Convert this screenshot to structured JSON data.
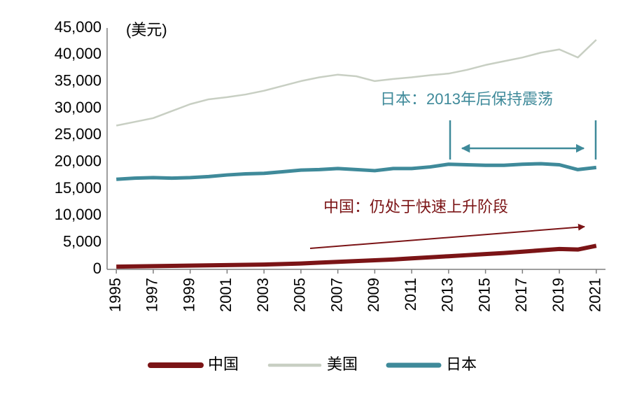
{
  "chart_data": {
    "type": "line",
    "y_label": "(美元)",
    "x": [
      1995,
      1996,
      1997,
      1998,
      1999,
      2000,
      2001,
      2002,
      2003,
      2004,
      2005,
      2006,
      2007,
      2008,
      2009,
      2010,
      2011,
      2012,
      2013,
      2014,
      2015,
      2016,
      2017,
      2018,
      2019,
      2020,
      2021
    ],
    "xlim": [
      1994.5,
      2021.5
    ],
    "xticks": [
      1995,
      1997,
      1999,
      2001,
      2003,
      2005,
      2007,
      2009,
      2011,
      2013,
      2015,
      2017,
      2019,
      2021
    ],
    "ylim": [
      0,
      45000
    ],
    "yticks": [
      0,
      {
        "value": 5000,
        "label": "5,000"
      },
      {
        "value": 10000,
        "label": "10,000"
      },
      {
        "value": 15000,
        "label": "15,000"
      },
      {
        "value": 20000,
        "label": "20,000"
      },
      {
        "value": 25000,
        "label": "25,000"
      },
      {
        "value": 30000,
        "label": "30,000"
      },
      {
        "value": 35000,
        "label": "35,000"
      },
      {
        "value": 40000,
        "label": "40,000"
      },
      {
        "value": 45000,
        "label": "45,000"
      }
    ],
    "grid": false,
    "legend": "bottom",
    "series": [
      {
        "name": "中国",
        "color": "#7b1416",
        "width": 6,
        "values": [
          500,
          550,
          600,
          650,
          700,
          750,
          800,
          850,
          900,
          1000,
          1100,
          1250,
          1400,
          1550,
          1700,
          1850,
          2050,
          2250,
          2450,
          2650,
          2850,
          3050,
          3300,
          3550,
          3800,
          3700,
          4400
        ]
      },
      {
        "name": "美国",
        "color": "#c8cfc3",
        "width": 2.5,
        "values": [
          26800,
          27500,
          28200,
          29500,
          30800,
          31700,
          32100,
          32600,
          33300,
          34200,
          35100,
          35800,
          36300,
          36000,
          35100,
          35500,
          35800,
          36200,
          36500,
          37200,
          38100,
          38800,
          39500,
          40400,
          41000,
          39500,
          42800
        ]
      },
      {
        "name": "日本",
        "color": "#3f8a9a",
        "width": 5,
        "values": [
          16800,
          17000,
          17100,
          17000,
          17100,
          17300,
          17600,
          17800,
          17900,
          18200,
          18500,
          18600,
          18800,
          18600,
          18400,
          18800,
          18800,
          19100,
          19600,
          19500,
          19400,
          19400,
          19600,
          19700,
          19500,
          18600,
          19000
        ]
      }
    ],
    "annotations": [
      {
        "text": "日本：2013年后保持震荡",
        "color": "#3f8a9a"
      },
      {
        "text": "中国：仍处于快速上升阶段",
        "color": "#7b1416"
      }
    ]
  }
}
